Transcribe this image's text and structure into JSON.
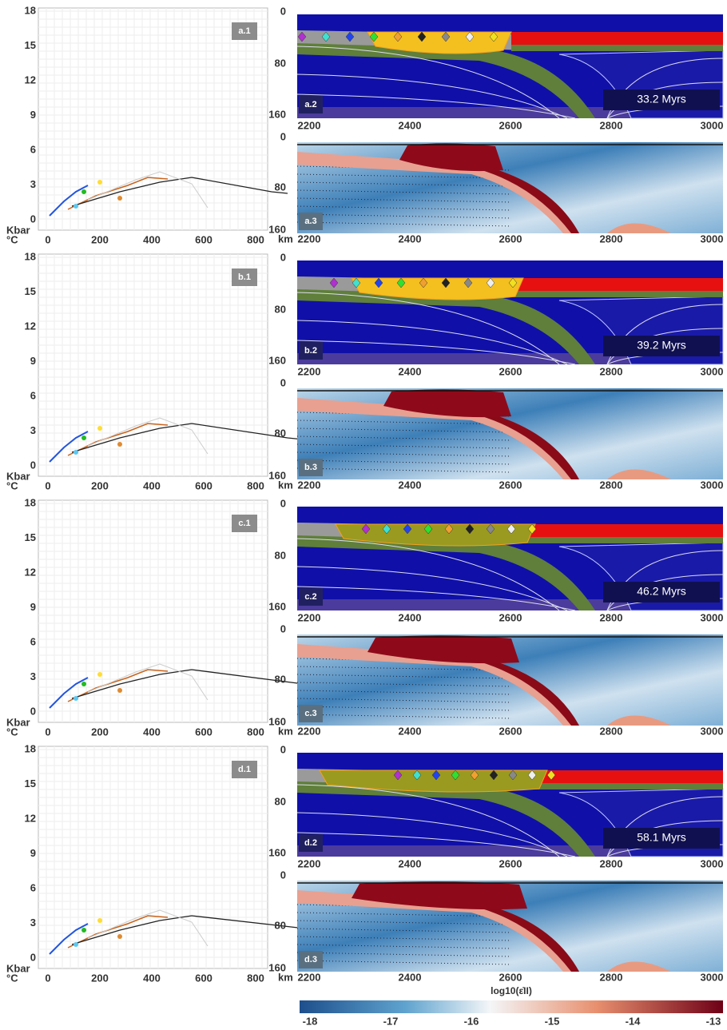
{
  "pt_axis": {
    "y_ticks": [
      "18",
      "15",
      "12",
      "9",
      "6",
      "3",
      "0"
    ],
    "x_ticks": [
      "0",
      "200",
      "400",
      "600",
      "800"
    ],
    "y_unit": "Kbar",
    "x_unit": "°C"
  },
  "section_axis": {
    "x_ticks": [
      "2200",
      "2400",
      "2600",
      "2800",
      "3000"
    ],
    "depth_ticks": [
      "0",
      "80",
      "160"
    ],
    "depth_unit": "km"
  },
  "rows": [
    {
      "pt_label": "a.1",
      "model_label": "a.2",
      "strain_label": "a.3",
      "time": "33.2 Myrs"
    },
    {
      "pt_label": "b.1",
      "model_label": "b.2",
      "strain_label": "b.3",
      "time": "39.2 Myrs"
    },
    {
      "pt_label": "c.1",
      "model_label": "c.2",
      "strain_label": "c.3",
      "time": "46.2 Myrs"
    },
    {
      "pt_label": "d.1",
      "model_label": "d.2",
      "strain_label": "d.3",
      "time": "58.1 Myrs"
    }
  ],
  "colorbar": {
    "title": "log10(ε̇II)",
    "ticks": [
      "-18",
      "-17",
      "-16",
      "-15",
      "-14",
      "-13"
    ]
  }
}
